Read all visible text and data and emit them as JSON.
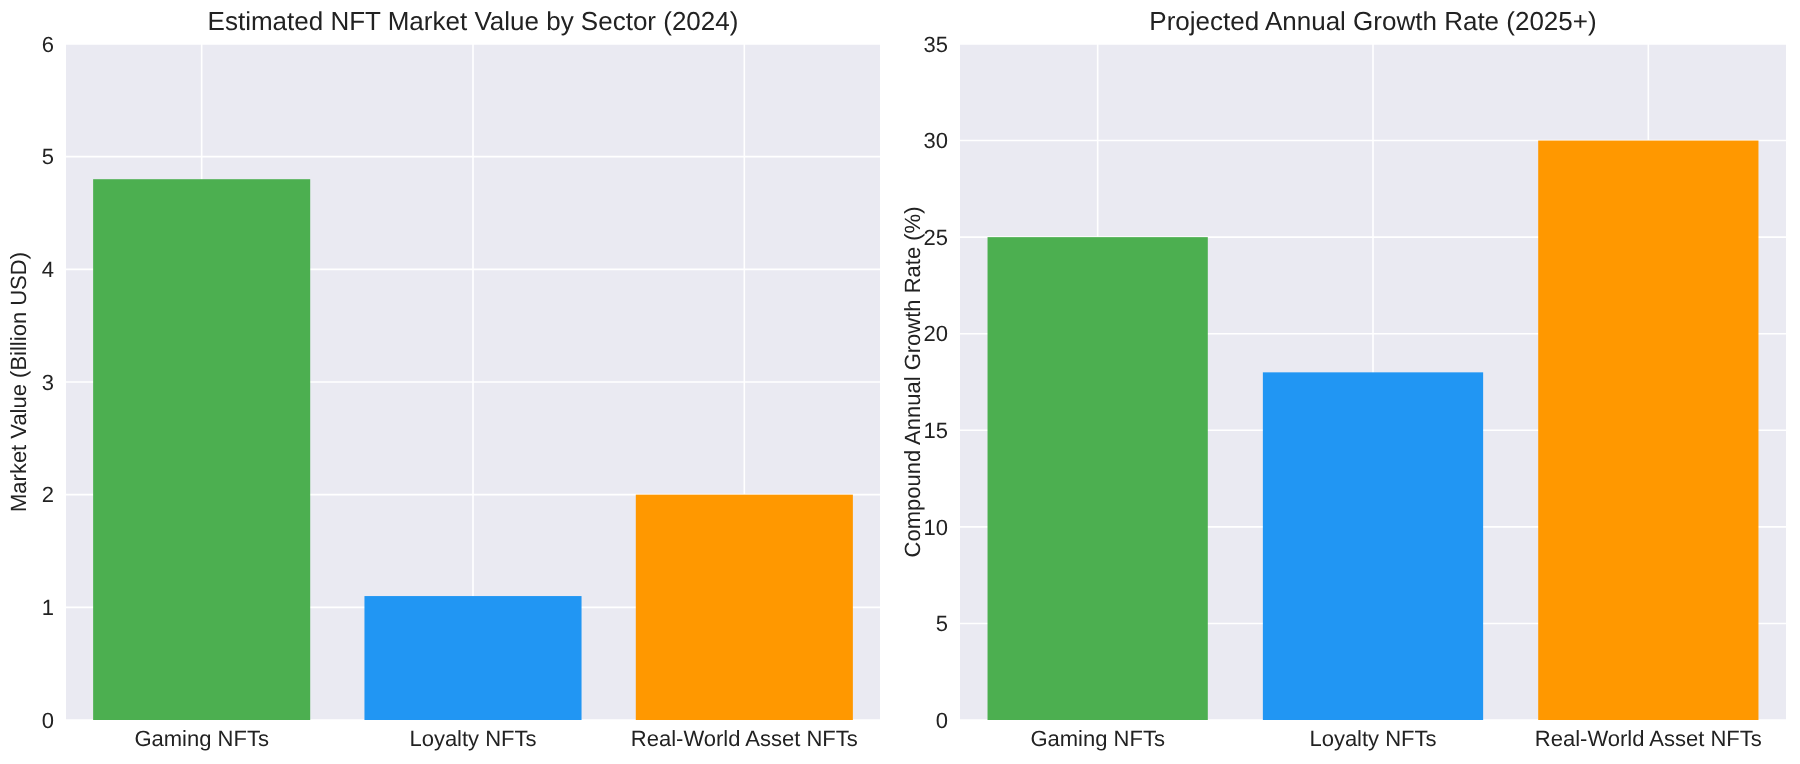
{
  "chart_data": [
    {
      "type": "bar",
      "title": "Estimated NFT Market Value by Sector (2024)",
      "ylabel": "Market Value (Billion USD)",
      "categories": [
        "Gaming NFTs",
        "Loyalty NFTs",
        "Real-World Asset NFTs"
      ],
      "values": [
        4.8,
        1.1,
        2.0
      ],
      "colors": [
        "#4caf50",
        "#2196f3",
        "#ff9800"
      ],
      "ylim": [
        0,
        6
      ],
      "yticks": [
        0,
        1,
        2,
        3,
        4,
        5,
        6
      ],
      "grid": true
    },
    {
      "type": "bar",
      "title": "Projected Annual Growth Rate (2025+)",
      "ylabel": "Compound Annual Growth Rate (%)",
      "categories": [
        "Gaming NFTs",
        "Loyalty NFTs",
        "Real-World Asset NFTs"
      ],
      "values": [
        25,
        18,
        30
      ],
      "colors": [
        "#4caf50",
        "#2196f3",
        "#ff9800"
      ],
      "ylim": [
        0,
        35
      ],
      "yticks": [
        0,
        5,
        10,
        15,
        20,
        25,
        30,
        35
      ],
      "grid": true
    }
  ]
}
